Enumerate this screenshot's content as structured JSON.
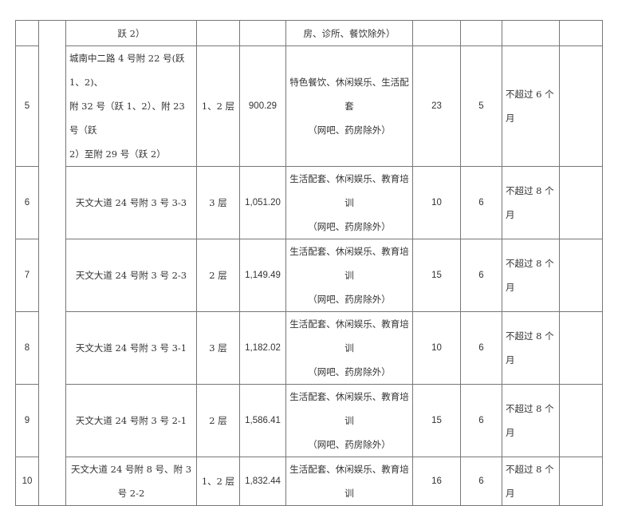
{
  "rows": [
    {
      "idx": "",
      "addr": [
        "跃 2）"
      ],
      "floor": "",
      "area": "",
      "use": [
        "房、诊所、餐饮除外）"
      ],
      "c7": "",
      "c8": "",
      "term": ""
    },
    {
      "idx": "5",
      "addr": [
        "城南中二路 4 号附 22 号(跃 1、2)、",
        "附 32 号（跃 1、2）、附 23 号（跃",
        "2）至附 29 号（跃 2）"
      ],
      "floor": "1、2 层",
      "area": "900.29",
      "use": [
        "特色餐饮、休闲娱乐、生活配套",
        "（网吧、药房除外）"
      ],
      "c7": "23",
      "c8": "5",
      "term": "不超过 6 个月"
    },
    {
      "idx": "6",
      "addr": [
        "天文大道 24 号附 3 号 3-3"
      ],
      "floor": "3 层",
      "area": "1,051.20",
      "use": [
        "生活配套、休闲娱乐、教育培训",
        "（网吧、药房除外）"
      ],
      "c7": "10",
      "c8": "6",
      "term": "不超过 8 个月"
    },
    {
      "idx": "7",
      "addr": [
        "天文大道 24 号附 3 号 2-3"
      ],
      "floor": "2 层",
      "area": "1,149.49",
      "use": [
        "生活配套、休闲娱乐、教育培训",
        "（网吧、药房除外）"
      ],
      "c7": "15",
      "c8": "6",
      "term": "不超过 8 个月"
    },
    {
      "idx": "8",
      "addr": [
        "天文大道 24 号附 3 号 3-1"
      ],
      "floor": "3 层",
      "area": "1,182.02",
      "use": [
        "生活配套、休闲娱乐、教育培训",
        "（网吧、药房除外）"
      ],
      "c7": "10",
      "c8": "6",
      "term": "不超过 8 个月"
    },
    {
      "idx": "9",
      "addr": [
        "天文大道 24 号附 3 号 2-1"
      ],
      "floor": "2 层",
      "area": "1,586.41",
      "use": [
        "生活配套、休闲娱乐、教育培训",
        "（网吧、药房除外）"
      ],
      "c7": "15",
      "c8": "6",
      "term": "不超过 8 个月"
    },
    {
      "idx": "10",
      "addr": [
        "天文大道 24 号附 8 号、附 3 号 2-2"
      ],
      "floor": "1、2 层",
      "area": "1,832.44",
      "use": [
        "生活配套、休闲娱乐、教育培训"
      ],
      "c7": "16",
      "c8": "6",
      "term": "不超过 8 个月"
    }
  ]
}
